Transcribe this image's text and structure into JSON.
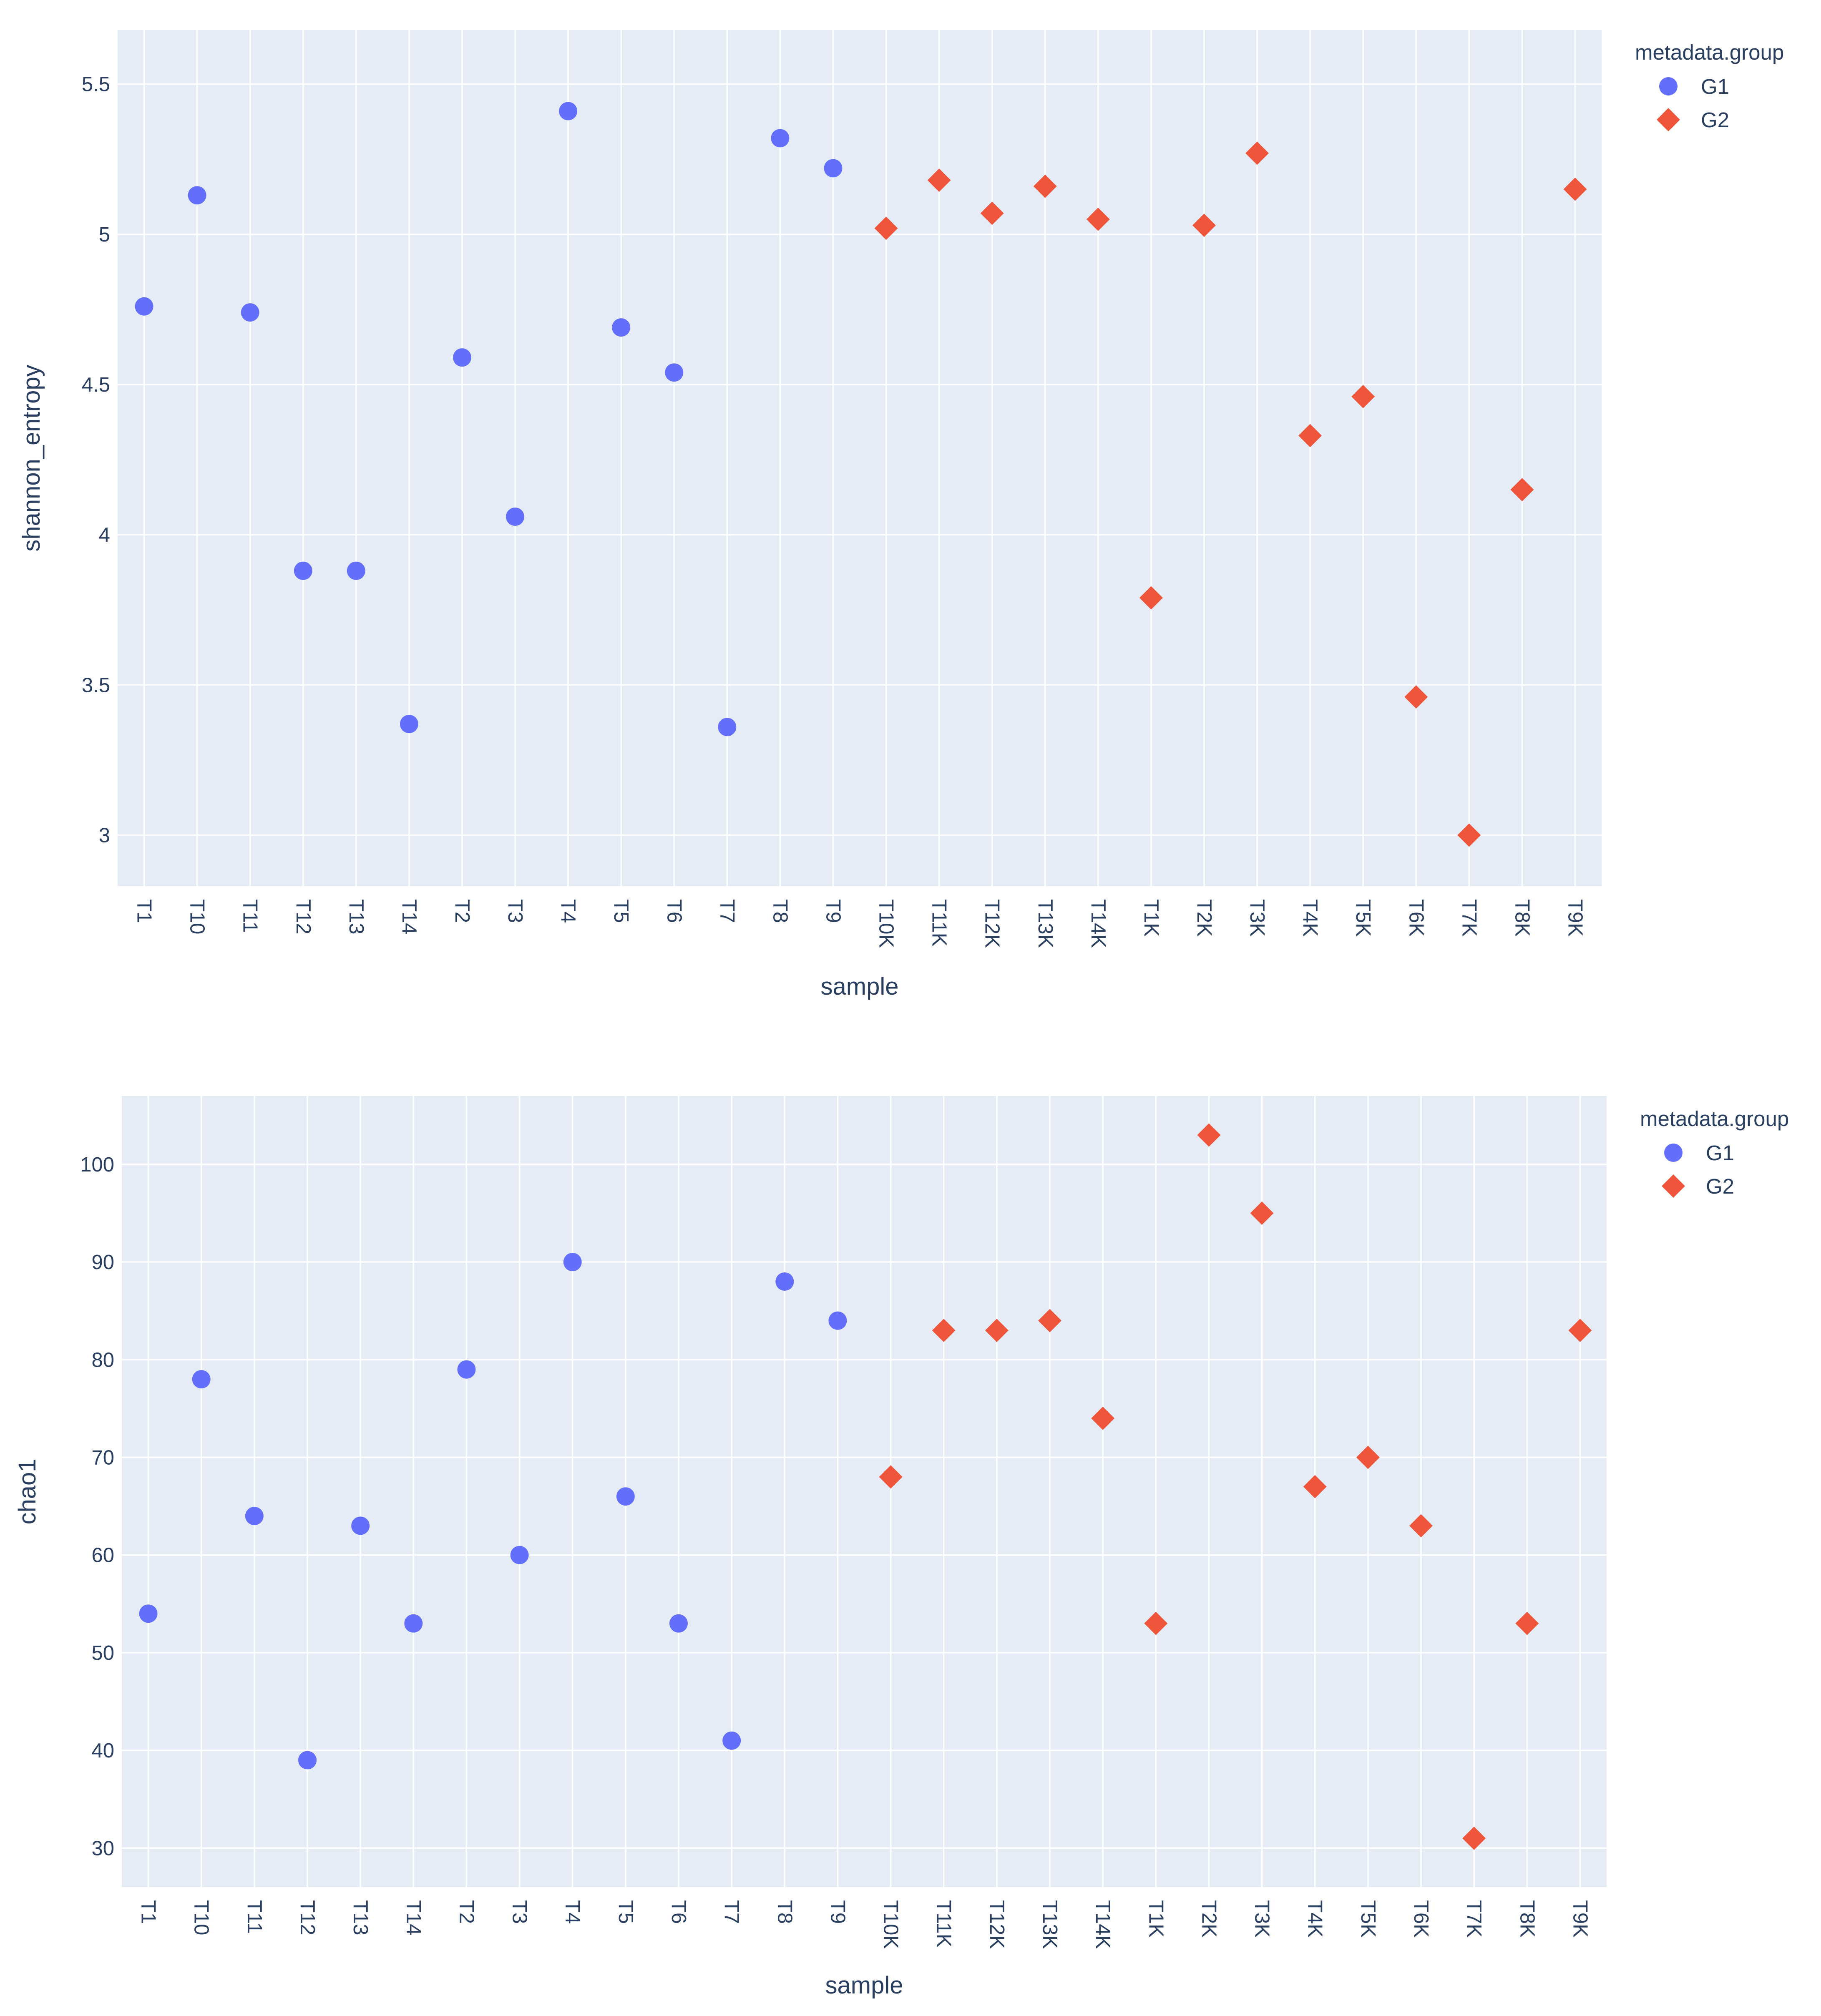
{
  "chart_data": [
    {
      "type": "scatter",
      "xlabel": "sample",
      "ylabel": "shannon_entropy",
      "ylim": [
        2.83,
        5.68
      ],
      "yticks": [
        3,
        3.5,
        4,
        4.5,
        5,
        5.5
      ],
      "ytick_labels": [
        "3",
        "3.5",
        "4",
        "4.5",
        "5",
        "5.5"
      ],
      "categories": [
        "T1",
        "T10",
        "T11",
        "T12",
        "T13",
        "T14",
        "T2",
        "T3",
        "T4",
        "T5",
        "T6",
        "T7",
        "T8",
        "T9",
        "T10K",
        "T11K",
        "T12K",
        "T13K",
        "T14K",
        "T1K",
        "T2K",
        "T3K",
        "T4K",
        "T5K",
        "T6K",
        "T7K",
        "T8K",
        "T9K"
      ],
      "grid": true,
      "legend": {
        "title": "metadata.group",
        "placement": "top-right"
      },
      "series": [
        {
          "name": "G1",
          "marker": "circle",
          "color": "#636efa",
          "points": [
            {
              "x": "T1",
              "y": 4.76
            },
            {
              "x": "T10",
              "y": 5.13
            },
            {
              "x": "T11",
              "y": 4.74
            },
            {
              "x": "T12",
              "y": 3.88
            },
            {
              "x": "T13",
              "y": 3.88
            },
            {
              "x": "T14",
              "y": 3.37
            },
            {
              "x": "T2",
              "y": 4.59
            },
            {
              "x": "T3",
              "y": 4.06
            },
            {
              "x": "T4",
              "y": 5.41
            },
            {
              "x": "T5",
              "y": 4.69
            },
            {
              "x": "T6",
              "y": 4.54
            },
            {
              "x": "T7",
              "y": 3.36
            },
            {
              "x": "T8",
              "y": 5.32
            },
            {
              "x": "T9",
              "y": 5.22
            }
          ]
        },
        {
          "name": "G2",
          "marker": "diamond",
          "color": "#ef553b",
          "points": [
            {
              "x": "T10K",
              "y": 5.02
            },
            {
              "x": "T11K",
              "y": 5.18
            },
            {
              "x": "T12K",
              "y": 5.07
            },
            {
              "x": "T13K",
              "y": 5.16
            },
            {
              "x": "T14K",
              "y": 5.05
            },
            {
              "x": "T1K",
              "y": 3.79
            },
            {
              "x": "T2K",
              "y": 5.03
            },
            {
              "x": "T3K",
              "y": 5.27
            },
            {
              "x": "T4K",
              "y": 4.33
            },
            {
              "x": "T5K",
              "y": 4.46
            },
            {
              "x": "T6K",
              "y": 3.46
            },
            {
              "x": "T7K",
              "y": 3.0
            },
            {
              "x": "T8K",
              "y": 4.15
            },
            {
              "x": "T9K",
              "y": 5.15
            }
          ]
        }
      ]
    },
    {
      "type": "scatter",
      "xlabel": "sample",
      "ylabel": "chao1",
      "ylim": [
        26.0,
        107.0
      ],
      "yticks": [
        30,
        40,
        50,
        60,
        70,
        80,
        90,
        100
      ],
      "ytick_labels": [
        "30",
        "40",
        "50",
        "60",
        "70",
        "80",
        "90",
        "100"
      ],
      "categories": [
        "T1",
        "T10",
        "T11",
        "T12",
        "T13",
        "T14",
        "T2",
        "T3",
        "T4",
        "T5",
        "T6",
        "T7",
        "T8",
        "T9",
        "T10K",
        "T11K",
        "T12K",
        "T13K",
        "T14K",
        "T1K",
        "T2K",
        "T3K",
        "T4K",
        "T5K",
        "T6K",
        "T7K",
        "T8K",
        "T9K"
      ],
      "grid": true,
      "legend": {
        "title": "metadata.group",
        "placement": "top-right"
      },
      "series": [
        {
          "name": "G1",
          "marker": "circle",
          "color": "#636efa",
          "points": [
            {
              "x": "T1",
              "y": 54
            },
            {
              "x": "T10",
              "y": 78
            },
            {
              "x": "T11",
              "y": 64
            },
            {
              "x": "T12",
              "y": 39
            },
            {
              "x": "T13",
              "y": 63
            },
            {
              "x": "T14",
              "y": 53
            },
            {
              "x": "T2",
              "y": 79
            },
            {
              "x": "T3",
              "y": 60
            },
            {
              "x": "T4",
              "y": 90
            },
            {
              "x": "T5",
              "y": 66
            },
            {
              "x": "T6",
              "y": 53
            },
            {
              "x": "T7",
              "y": 41
            },
            {
              "x": "T8",
              "y": 88
            },
            {
              "x": "T9",
              "y": 84
            }
          ]
        },
        {
          "name": "G2",
          "marker": "diamond",
          "color": "#ef553b",
          "points": [
            {
              "x": "T10K",
              "y": 68
            },
            {
              "x": "T11K",
              "y": 83
            },
            {
              "x": "T12K",
              "y": 83
            },
            {
              "x": "T13K",
              "y": 84
            },
            {
              "x": "T14K",
              "y": 74
            },
            {
              "x": "T1K",
              "y": 53
            },
            {
              "x": "T2K",
              "y": 103
            },
            {
              "x": "T3K",
              "y": 95
            },
            {
              "x": "T4K",
              "y": 67
            },
            {
              "x": "T5K",
              "y": 70
            },
            {
              "x": "T6K",
              "y": 63
            },
            {
              "x": "T7K",
              "y": 31
            },
            {
              "x": "T8K",
              "y": 53
            },
            {
              "x": "T9K",
              "y": 83
            }
          ]
        }
      ]
    }
  ]
}
